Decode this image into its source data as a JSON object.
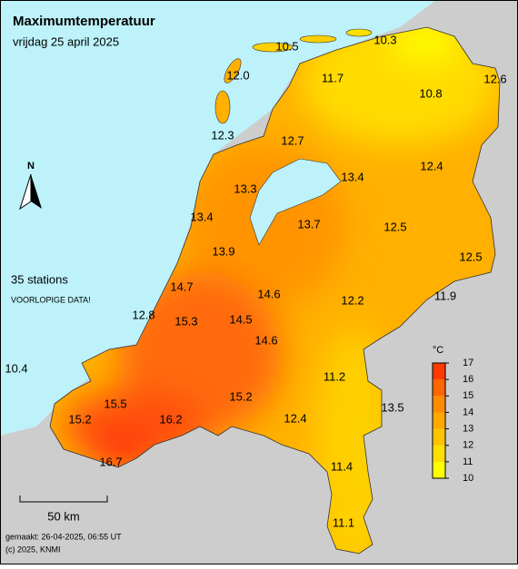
{
  "title": "Maximumtemperatuur",
  "subtitle": "vrijdag 25 april 2025",
  "north": "N",
  "station_count": "35 stations",
  "notice": "VOORLOPIGE DATA!",
  "scale_bar": "50 km",
  "made": "gemaakt: 26-04-2025, 06:55 UT",
  "copyright": "(c) 2025, KNMI",
  "legend": {
    "unit": "°C",
    "ticks": [
      10,
      11,
      12,
      13,
      14,
      15,
      16,
      17
    ],
    "colors": [
      "#ffff00",
      "#ffe000",
      "#ffc400",
      "#ffa800",
      "#ff8c00",
      "#ff6600",
      "#ff3a00"
    ]
  },
  "stations": [
    "10.5",
    "10.3",
    "12.0",
    "11.7",
    "10.8",
    "12.6",
    "12.3",
    "12.7",
    "13.4",
    "12.4",
    "13.3",
    "13.4",
    "13.7",
    "12.5",
    "12.5",
    "13.9",
    "14.7",
    "14.6",
    "12.2",
    "11.9",
    "12.8",
    "15.3",
    "14.5",
    "14.6",
    "10.4",
    "11.2",
    "15.2",
    "15.5",
    "13.5",
    "15.2",
    "16.2",
    "12.4",
    "16.7",
    "11.4",
    "11.1"
  ]
}
